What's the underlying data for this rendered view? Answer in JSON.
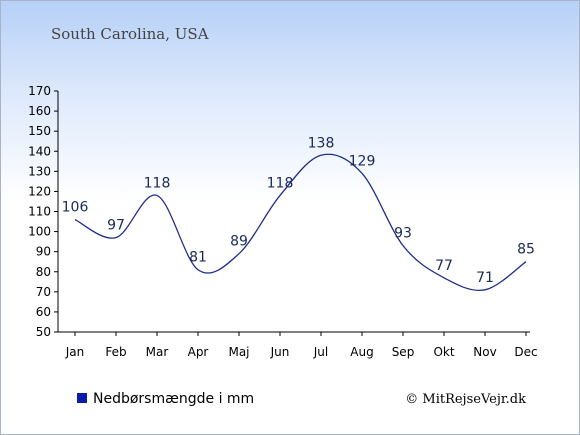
{
  "chart_data": {
    "type": "line",
    "title": "South Carolina, USA",
    "categories": [
      "Jan",
      "Feb",
      "Mar",
      "Apr",
      "Maj",
      "Jun",
      "Jul",
      "Aug",
      "Sep",
      "Okt",
      "Nov",
      "Dec"
    ],
    "series": [
      {
        "name": "Nedbørsmængde i mm",
        "values": [
          106,
          97,
          118,
          81,
          89,
          118,
          138,
          129,
          93,
          77,
          71,
          85
        ]
      }
    ],
    "ylim": [
      50,
      170
    ],
    "yticks": [
      50,
      60,
      70,
      80,
      90,
      100,
      110,
      120,
      130,
      140,
      150,
      160,
      170
    ],
    "grid": false,
    "legend": "bottom-left",
    "line_color": "#1f2d8a",
    "legend_color": "#0b1da8"
  },
  "credit": "© MitRejseVejr.dk"
}
